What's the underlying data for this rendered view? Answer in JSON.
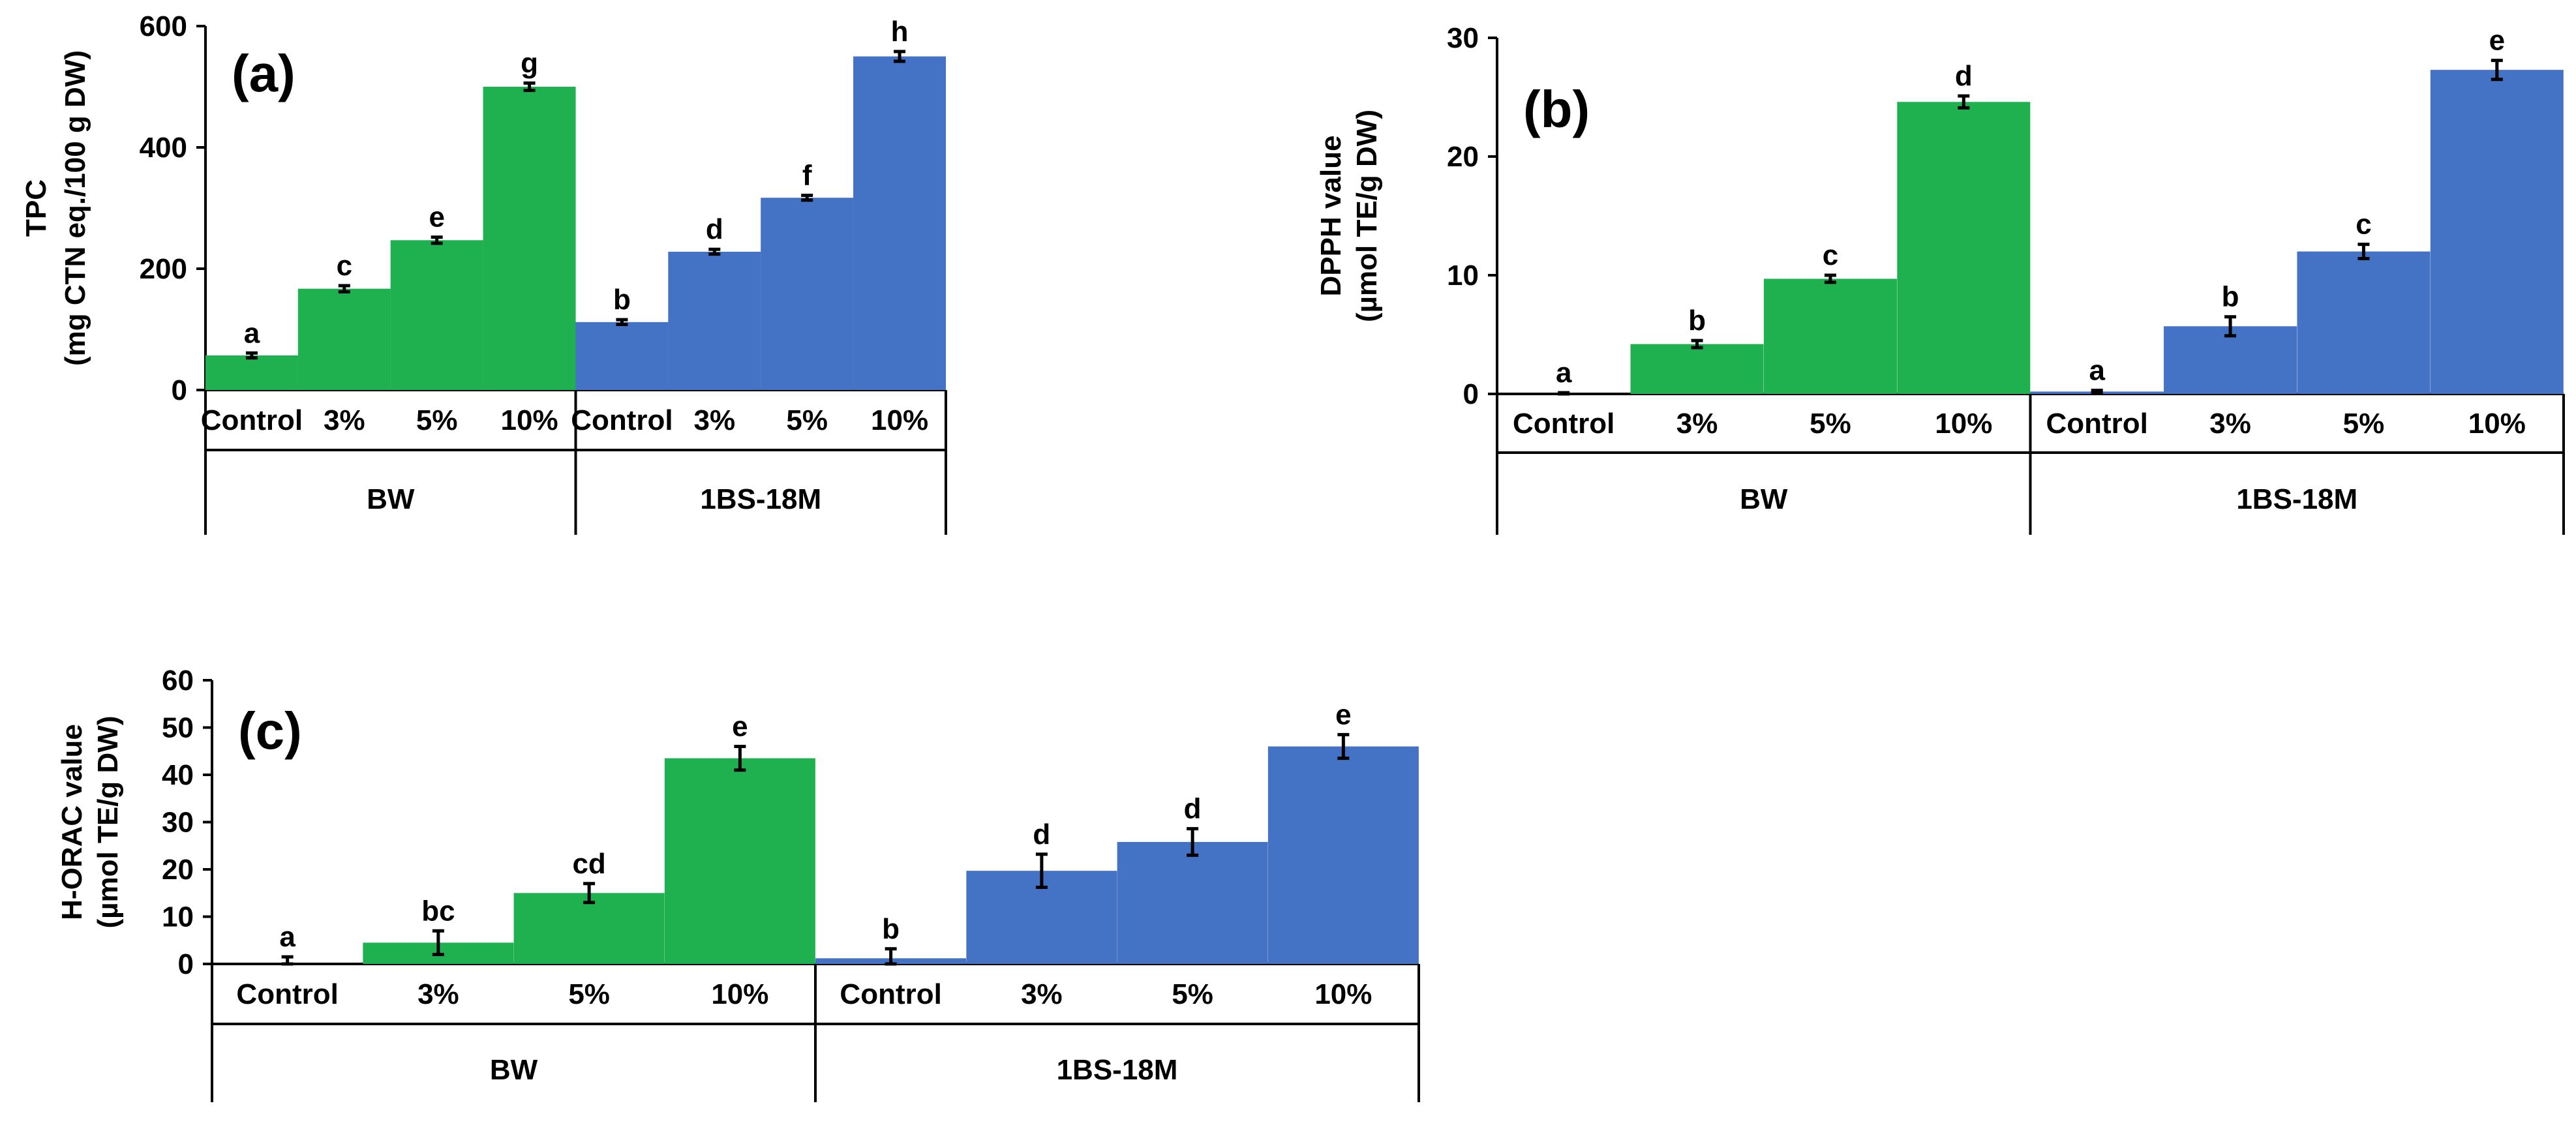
{
  "colors": {
    "bw": "#1fb14f",
    "bs": "#4472c4"
  },
  "chart_data": [
    {
      "type": "bar",
      "panel_label": "(a)",
      "ylabel_lines": [
        "TPC",
        "(mg CTN eq./100 g DW)"
      ],
      "ylim": [
        0,
        600
      ],
      "yticks": [
        0,
        200,
        400,
        600
      ],
      "categories": [
        "Control",
        "3%",
        "5%",
        "10%",
        "Control",
        "3%",
        "5%",
        "10%"
      ],
      "groups": [
        {
          "name": "BW",
          "series_color": "bw"
        },
        {
          "name": "1BS-18M",
          "series_color": "bs"
        }
      ],
      "values": [
        57,
        167,
        247,
        500,
        112,
        228,
        317,
        550
      ],
      "errors": [
        4,
        5,
        5,
        6,
        4,
        4,
        4,
        8
      ],
      "letters": [
        "a",
        "c",
        "e",
        "g",
        "b",
        "d",
        "f",
        "h"
      ]
    },
    {
      "type": "bar",
      "panel_label": "(b)",
      "ylabel_lines": [
        "DPPH value",
        "(µmol TE/g DW)"
      ],
      "ylim": [
        0,
        30
      ],
      "yticks": [
        0,
        10,
        20,
        30
      ],
      "categories": [
        "Control",
        "3%",
        "5%",
        "10%",
        "Control",
        "3%",
        "5%",
        "10%"
      ],
      "groups": [
        {
          "name": "BW",
          "series_color": "bw"
        },
        {
          "name": "1BS-18M",
          "series_color": "bs"
        }
      ],
      "values": [
        0,
        4.2,
        9.7,
        24.6,
        0.2,
        5.7,
        12.0,
        27.3
      ],
      "errors": [
        0.1,
        0.3,
        0.3,
        0.5,
        0.1,
        0.8,
        0.6,
        0.8
      ],
      "letters": [
        "a",
        "b",
        "c",
        "d",
        "a",
        "b",
        "c",
        "e"
      ]
    },
    {
      "type": "bar",
      "panel_label": "(c)",
      "ylabel_lines": [
        "H-ORAC value",
        "(µmol TE/g DW)"
      ],
      "ylim": [
        0,
        60
      ],
      "yticks": [
        0,
        10,
        20,
        30,
        40,
        50,
        60
      ],
      "categories": [
        "Control",
        "3%",
        "5%",
        "10%",
        "Control",
        "3%",
        "5%",
        "10%"
      ],
      "groups": [
        {
          "name": "BW",
          "series_color": "bw"
        },
        {
          "name": "1BS-18M",
          "series_color": "bs"
        }
      ],
      "values": [
        0,
        4.5,
        15,
        43.5,
        1.2,
        19.7,
        25.8,
        46
      ],
      "errors": [
        1.5,
        2.5,
        2,
        2.5,
        2,
        3.5,
        2.8,
        2.5
      ],
      "letters": [
        "a",
        "bc",
        "cd",
        "e",
        "b",
        "d",
        "d",
        "e"
      ]
    }
  ]
}
